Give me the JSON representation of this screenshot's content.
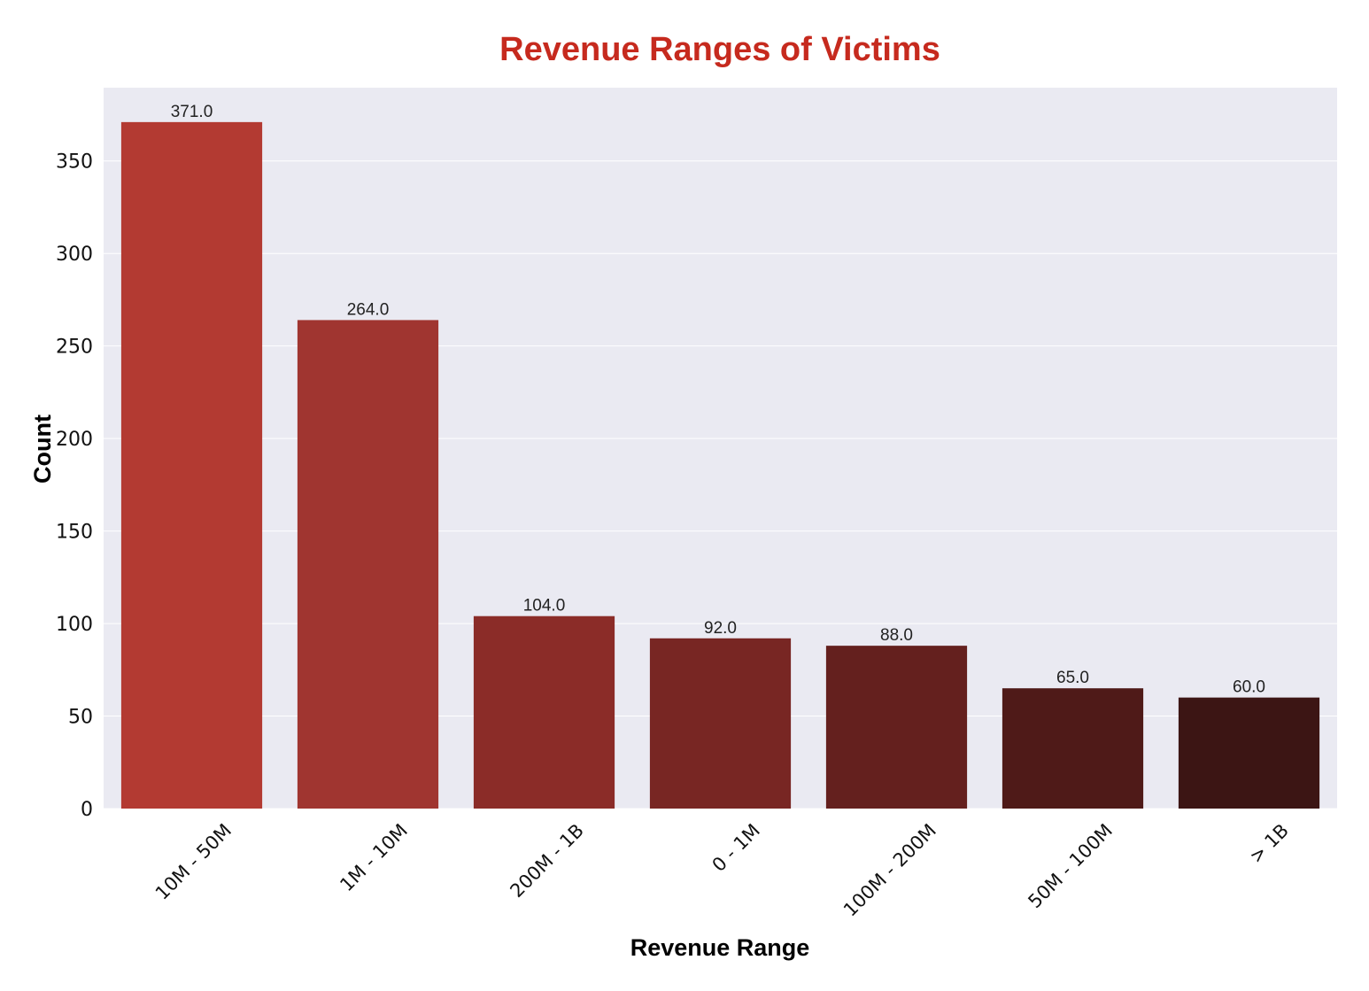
{
  "colors": {
    "title": "#C62A1E",
    "plot_background": "#EAEAF2",
    "grid": "#FFFFFF"
  },
  "chart_data": {
    "type": "bar",
    "title": "Revenue Ranges of Victims",
    "xlabel": "Revenue Range",
    "ylabel": "Count",
    "categories": [
      "10M - 50M",
      "1M - 10M",
      "200M - 1B",
      "0 - 1M",
      "100M - 200M",
      "50M - 100M",
      "> 1B"
    ],
    "values": [
      371,
      264,
      104,
      92,
      88,
      65,
      60
    ],
    "value_labels": [
      "371.0",
      "264.0",
      "104.0",
      "92.0",
      "88.0",
      "65.0",
      "60.0"
    ],
    "bar_colors": [
      "#B33A32",
      "#A03530",
      "#8B2C28",
      "#782623",
      "#64201E",
      "#4F1A18",
      "#3C1514"
    ],
    "yticks": [
      0,
      50,
      100,
      150,
      200,
      250,
      300,
      350
    ],
    "ylim": [
      0,
      389.6
    ],
    "grid": true,
    "legend": "none"
  }
}
